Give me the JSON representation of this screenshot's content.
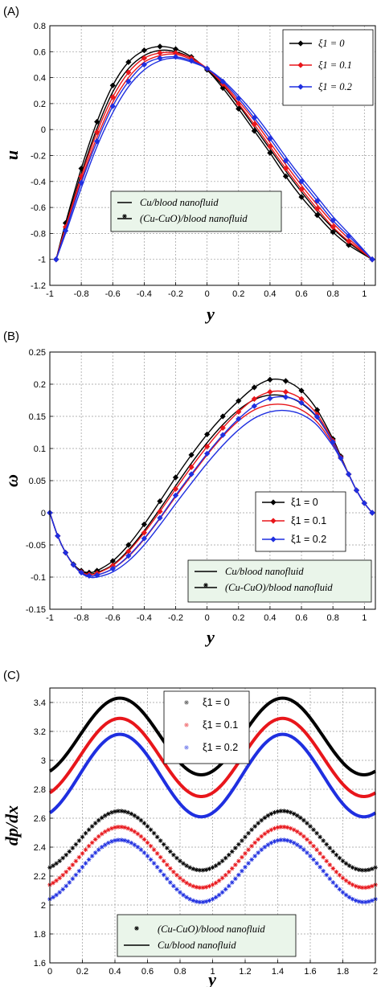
{
  "colors": {
    "black": "#000000",
    "red": "#e8161b",
    "blue": "#1f2fe0",
    "legend_bg": "#eaf5ea",
    "grid": "#9a9a9a"
  },
  "chart_data": [
    {
      "panel": "(A)",
      "type": "line",
      "xlabel": "y",
      "ylabel": "u",
      "xlim": [
        -1,
        1.07
      ],
      "ylim": [
        -1.2,
        0.8
      ],
      "xticks": [
        "-1",
        "-0.8",
        "-0.6",
        "-0.4",
        "-0.2",
        "0",
        "0.2",
        "0.4",
        "0.6",
        "0.8",
        "1"
      ],
      "yticks": [
        "-1.2",
        "-1",
        "-0.8",
        "-0.6",
        "-0.4",
        "-0.2",
        "0",
        "0.2",
        "0.4",
        "0.6",
        "0.8"
      ],
      "grid": true,
      "legend_series": [
        "ξ1 = 0",
        "ξ1 = 0.1",
        "ξ1 = 0.2"
      ],
      "legend_series_placement": "top-right",
      "legend_fluid": [
        "Cu/blood nanofluid",
        "(Cu-CuO)/blood nanofluid"
      ],
      "legend_fluid_placement": "center-left",
      "series": [
        {
          "name": "ξ1 = 0",
          "fluid": "(Cu-CuO)/blood nanofluid",
          "color": "black",
          "x": [
            -0.96,
            -0.9,
            -0.8,
            -0.7,
            -0.6,
            -0.5,
            -0.4,
            -0.3,
            -0.2,
            -0.1,
            0,
            0.1,
            0.2,
            0.3,
            0.4,
            0.5,
            0.6,
            0.7,
            0.8,
            0.9,
            1.05
          ],
          "y": [
            -1,
            -0.72,
            -0.3,
            0.06,
            0.34,
            0.52,
            0.61,
            0.64,
            0.62,
            0.56,
            0.46,
            0.32,
            0.16,
            -0.01,
            -0.18,
            -0.36,
            -0.52,
            -0.66,
            -0.79,
            -0.89,
            -1
          ]
        },
        {
          "name": "ξ1 = 0",
          "fluid": "Cu/blood nanofluid",
          "color": "black",
          "x": [
            -0.96,
            -0.9,
            -0.8,
            -0.7,
            -0.6,
            -0.5,
            -0.4,
            -0.3,
            -0.2,
            -0.1,
            0,
            0.1,
            0.2,
            0.3,
            0.4,
            0.5,
            0.6,
            0.7,
            0.8,
            0.9,
            1.05
          ],
          "y": [
            -1,
            -0.74,
            -0.34,
            0.01,
            0.29,
            0.47,
            0.57,
            0.61,
            0.6,
            0.55,
            0.46,
            0.34,
            0.19,
            0.02,
            -0.15,
            -0.32,
            -0.48,
            -0.63,
            -0.76,
            -0.87,
            -1
          ]
        },
        {
          "name": "ξ1 = 0.1",
          "fluid": "(Cu-CuO)/blood nanofluid",
          "color": "red",
          "x": [
            -0.96,
            -0.9,
            -0.8,
            -0.7,
            -0.6,
            -0.5,
            -0.4,
            -0.3,
            -0.2,
            -0.1,
            0,
            0.1,
            0.2,
            0.3,
            0.4,
            0.5,
            0.6,
            0.7,
            0.8,
            0.9,
            1.05
          ],
          "y": [
            -1,
            -0.75,
            -0.36,
            -0.02,
            0.25,
            0.44,
            0.55,
            0.59,
            0.59,
            0.55,
            0.47,
            0.35,
            0.2,
            0.04,
            -0.13,
            -0.3,
            -0.46,
            -0.61,
            -0.75,
            -0.86,
            -1
          ]
        },
        {
          "name": "ξ1 = 0.1",
          "fluid": "Cu/blood nanofluid",
          "color": "red",
          "x": [
            -0.96,
            -0.9,
            -0.8,
            -0.7,
            -0.6,
            -0.5,
            -0.4,
            -0.3,
            -0.2,
            -0.1,
            0,
            0.1,
            0.2,
            0.3,
            0.4,
            0.5,
            0.6,
            0.7,
            0.8,
            0.9,
            1.05
          ],
          "y": [
            -1,
            -0.77,
            -0.39,
            -0.06,
            0.21,
            0.4,
            0.52,
            0.57,
            0.58,
            0.54,
            0.47,
            0.36,
            0.22,
            0.07,
            -0.1,
            -0.27,
            -0.43,
            -0.58,
            -0.72,
            -0.84,
            -1
          ]
        },
        {
          "name": "ξ1 = 0.2",
          "fluid": "(Cu-CuO)/blood nanofluid",
          "color": "blue",
          "x": [
            -0.96,
            -0.9,
            -0.8,
            -0.7,
            -0.6,
            -0.5,
            -0.4,
            -0.3,
            -0.2,
            -0.1,
            0,
            0.1,
            0.2,
            0.3,
            0.4,
            0.5,
            0.6,
            0.7,
            0.8,
            0.9,
            1.05
          ],
          "y": [
            -1,
            -0.78,
            -0.41,
            -0.09,
            0.18,
            0.37,
            0.5,
            0.55,
            0.56,
            0.53,
            0.47,
            0.37,
            0.24,
            0.09,
            -0.07,
            -0.24,
            -0.4,
            -0.55,
            -0.7,
            -0.82,
            -1
          ]
        },
        {
          "name": "ξ1 = 0.2",
          "fluid": "Cu/blood nanofluid",
          "color": "blue",
          "x": [
            -0.96,
            -0.9,
            -0.8,
            -0.7,
            -0.6,
            -0.5,
            -0.4,
            -0.3,
            -0.2,
            -0.1,
            0,
            0.1,
            0.2,
            0.3,
            0.4,
            0.5,
            0.6,
            0.7,
            0.8,
            0.9,
            1.05
          ],
          "y": [
            -1,
            -0.8,
            -0.45,
            -0.13,
            0.13,
            0.33,
            0.46,
            0.53,
            0.55,
            0.52,
            0.47,
            0.38,
            0.26,
            0.12,
            -0.04,
            -0.21,
            -0.37,
            -0.52,
            -0.67,
            -0.8,
            -1
          ]
        }
      ]
    },
    {
      "panel": "(B)",
      "type": "line",
      "xlabel": "y",
      "ylabel": "ω",
      "xlim": [
        -1,
        1.07
      ],
      "ylim": [
        -0.15,
        0.25
      ],
      "xticks": [
        "-1",
        "-0.8",
        "-0.6",
        "-0.4",
        "-0.2",
        "0",
        "0.2",
        "0.4",
        "0.6",
        "0.8",
        "1"
      ],
      "yticks": [
        "-0.15",
        "-0.1",
        "-0.05",
        "0",
        "0.05",
        "0.1",
        "0.15",
        "0.2",
        "0.25"
      ],
      "grid": true,
      "legend_series": [
        "ξ1 = 0",
        "ξ1 = 0.1",
        "ξ1 = 0.2"
      ],
      "legend_series_placement": "center-right",
      "legend_fluid": [
        "Cu/blood nanofluid",
        "(Cu-CuO)/blood nanofluid"
      ],
      "legend_fluid_placement": "bottom-right",
      "series": [
        {
          "name": "ξ1 = 0",
          "fluid": "(Cu-CuO)/blood nanofluid",
          "color": "black",
          "x": [
            -1,
            -0.95,
            -0.9,
            -0.85,
            -0.8,
            -0.75,
            -0.7,
            -0.6,
            -0.5,
            -0.4,
            -0.3,
            -0.2,
            -0.1,
            0,
            0.1,
            0.2,
            0.3,
            0.4,
            0.5,
            0.6,
            0.7,
            0.8,
            0.85,
            0.9,
            0.95,
            1,
            1.05
          ],
          "y": [
            0,
            -0.036,
            -0.062,
            -0.08,
            -0.09,
            -0.093,
            -0.09,
            -0.075,
            -0.05,
            -0.018,
            0.018,
            0.055,
            0.09,
            0.122,
            0.15,
            0.174,
            0.195,
            0.207,
            0.205,
            0.19,
            0.16,
            0.115,
            0.088,
            0.06,
            0.035,
            0.015,
            0
          ]
        },
        {
          "name": "ξ1 = 0",
          "fluid": "Cu/blood nanofluid",
          "color": "black",
          "x": [
            -1,
            -0.95,
            -0.9,
            -0.85,
            -0.8,
            -0.75,
            -0.7,
            -0.6,
            -0.5,
            -0.4,
            -0.3,
            -0.2,
            -0.1,
            0,
            0.1,
            0.2,
            0.3,
            0.4,
            0.5,
            0.6,
            0.7,
            0.8,
            0.85,
            0.9,
            0.95,
            1,
            1.05
          ],
          "y": [
            0,
            -0.036,
            -0.062,
            -0.08,
            -0.091,
            -0.095,
            -0.093,
            -0.081,
            -0.058,
            -0.028,
            0.006,
            0.042,
            0.077,
            0.109,
            0.137,
            0.16,
            0.176,
            0.183,
            0.181,
            0.17,
            0.148,
            0.11,
            0.085,
            0.06,
            0.035,
            0.015,
            0
          ]
        },
        {
          "name": "ξ1 = 0.1",
          "fluid": "(Cu-CuO)/blood nanofluid",
          "color": "red",
          "x": [
            -1,
            -0.95,
            -0.9,
            -0.85,
            -0.8,
            -0.75,
            -0.7,
            -0.6,
            -0.5,
            -0.4,
            -0.3,
            -0.2,
            -0.1,
            0,
            0.1,
            0.2,
            0.3,
            0.4,
            0.5,
            0.6,
            0.7,
            0.8,
            0.85,
            0.9,
            0.95,
            1,
            1.05
          ],
          "y": [
            0,
            -0.036,
            -0.062,
            -0.081,
            -0.092,
            -0.096,
            -0.094,
            -0.082,
            -0.06,
            -0.031,
            0.002,
            0.037,
            0.071,
            0.103,
            0.132,
            0.157,
            0.177,
            0.188,
            0.188,
            0.177,
            0.153,
            0.112,
            0.086,
            0.06,
            0.035,
            0.015,
            0
          ]
        },
        {
          "name": "ξ1 = 0.1",
          "fluid": "Cu/blood nanofluid",
          "color": "red",
          "x": [
            -1,
            -0.95,
            -0.9,
            -0.85,
            -0.8,
            -0.75,
            -0.7,
            -0.6,
            -0.5,
            -0.4,
            -0.3,
            -0.2,
            -0.1,
            0,
            0.1,
            0.2,
            0.3,
            0.4,
            0.5,
            0.6,
            0.7,
            0.8,
            0.85,
            0.9,
            0.95,
            1,
            1.05
          ],
          "y": [
            0,
            -0.036,
            -0.062,
            -0.081,
            -0.093,
            -0.098,
            -0.097,
            -0.087,
            -0.068,
            -0.041,
            -0.009,
            0.025,
            0.058,
            0.09,
            0.119,
            0.143,
            0.16,
            0.168,
            0.168,
            0.16,
            0.141,
            0.107,
            0.084,
            0.06,
            0.035,
            0.015,
            0
          ]
        },
        {
          "name": "ξ1 = 0.2",
          "fluid": "(Cu-CuO)/blood nanofluid",
          "color": "blue",
          "x": [
            -1,
            -0.95,
            -0.9,
            -0.85,
            -0.8,
            -0.75,
            -0.7,
            -0.6,
            -0.5,
            -0.4,
            -0.3,
            -0.2,
            -0.1,
            0,
            0.1,
            0.2,
            0.3,
            0.4,
            0.5,
            0.6,
            0.7,
            0.8,
            0.85,
            0.9,
            0.95,
            1,
            1.05
          ],
          "y": [
            0,
            -0.036,
            -0.062,
            -0.081,
            -0.093,
            -0.098,
            -0.097,
            -0.087,
            -0.067,
            -0.04,
            -0.008,
            0.027,
            0.06,
            0.092,
            0.121,
            0.146,
            0.166,
            0.178,
            0.18,
            0.171,
            0.149,
            0.11,
            0.085,
            0.06,
            0.035,
            0.015,
            0
          ]
        },
        {
          "name": "ξ1 = 0.2",
          "fluid": "Cu/blood nanofluid",
          "color": "blue",
          "x": [
            -1,
            -0.95,
            -0.9,
            -0.85,
            -0.8,
            -0.75,
            -0.7,
            -0.6,
            -0.5,
            -0.4,
            -0.3,
            -0.2,
            -0.1,
            0,
            0.1,
            0.2,
            0.3,
            0.4,
            0.5,
            0.6,
            0.7,
            0.8,
            0.85,
            0.9,
            0.95,
            1,
            1.05
          ],
          "y": [
            0,
            -0.036,
            -0.062,
            -0.081,
            -0.094,
            -0.1,
            -0.1,
            -0.092,
            -0.075,
            -0.05,
            -0.019,
            0.014,
            0.046,
            0.077,
            0.105,
            0.129,
            0.147,
            0.157,
            0.159,
            0.153,
            0.136,
            0.104,
            0.083,
            0.06,
            0.035,
            0.015,
            0
          ]
        }
      ]
    },
    {
      "panel": "(C)",
      "type": "line",
      "xlabel": "y",
      "ylabel": "dp/dx",
      "xlim": [
        0,
        2
      ],
      "ylim": [
        1.6,
        3.5
      ],
      "xticks": [
        "0",
        "0.2",
        "0.4",
        "0.6",
        "0.8",
        "1",
        "1.2",
        "1.4",
        "1.6",
        "1.8",
        "2"
      ],
      "yticks": [
        "1.6",
        "1.8",
        "2",
        "2.2",
        "2.4",
        "2.6",
        "2.8",
        "3",
        "3.2",
        "3.4"
      ],
      "grid": true,
      "legend_series": [
        "ξ1 = 0",
        "ξ1 = 0.1",
        "ξ1 = 0.2"
      ],
      "legend_series_placement": "top-center",
      "legend_fluid": [
        "(Cu-CuO)/blood nanofluid",
        "Cu/blood nanofluid"
      ],
      "legend_fluid_placement": "bottom-center",
      "curve_model": "periodic, period 1, peak at y = 0.43, trough at y = 0.93",
      "series": [
        {
          "name": "ξ1 = 0",
          "fluid": "Cu/blood nanofluid",
          "color": "black",
          "marker": "line",
          "min": 2.9,
          "max": 3.43,
          "y0": 2.91
        },
        {
          "name": "ξ1 = 0.1",
          "fluid": "Cu/blood nanofluid",
          "color": "red",
          "marker": "line",
          "min": 2.75,
          "max": 3.29,
          "y0": 2.76
        },
        {
          "name": "ξ1 = 0.2",
          "fluid": "Cu/blood nanofluid",
          "color": "blue",
          "marker": "line",
          "min": 2.61,
          "max": 3.18,
          "y0": 2.62
        },
        {
          "name": "ξ1 = 0",
          "fluid": "(Cu-CuO)/blood nanofluid",
          "color": "black",
          "marker": "star",
          "min": 2.24,
          "max": 2.65,
          "y0": 2.25
        },
        {
          "name": "ξ1 = 0.1",
          "fluid": "(Cu-CuO)/blood nanofluid",
          "color": "red",
          "marker": "star",
          "min": 2.12,
          "max": 2.54,
          "y0": 2.13
        },
        {
          "name": "ξ1 = 0.2",
          "fluid": "(Cu-CuO)/blood nanofluid",
          "color": "blue",
          "marker": "star",
          "min": 2.02,
          "max": 2.45,
          "y0": 2.03
        }
      ]
    }
  ]
}
